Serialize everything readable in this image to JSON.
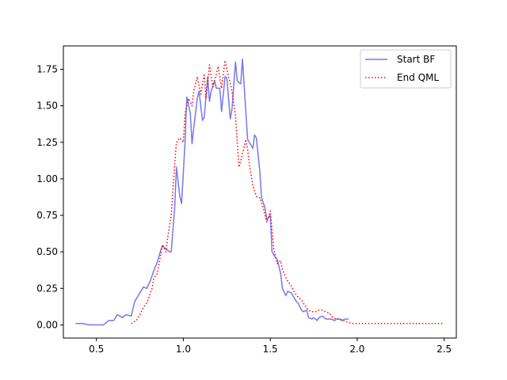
{
  "chart_data": {
    "type": "line",
    "title": "",
    "xlabel": "",
    "ylabel": "",
    "xlim": [
      0.31,
      2.57
    ],
    "ylim": [
      -0.09,
      1.91
    ],
    "xticks": [
      0.5,
      1.0,
      1.5,
      2.0,
      2.5
    ],
    "xtick_labels": [
      "0.5",
      "1.0",
      "1.5",
      "2.0",
      "2.5"
    ],
    "yticks": [
      0.0,
      0.25,
      0.5,
      0.75,
      1.0,
      1.25,
      1.5,
      1.75
    ],
    "ytick_labels": [
      "0.00",
      "0.25",
      "0.50",
      "0.75",
      "1.00",
      "1.25",
      "1.50",
      "1.75"
    ],
    "grid": false,
    "legend_position": "upper right",
    "series": [
      {
        "name": "Start BF",
        "color": "#7777ee",
        "style": "solid",
        "x": [
          0.38,
          0.42,
          0.46,
          0.5,
          0.54,
          0.57,
          0.6,
          0.62,
          0.65,
          0.67,
          0.7,
          0.72,
          0.74,
          0.77,
          0.79,
          0.81,
          0.83,
          0.85,
          0.87,
          0.88,
          0.9,
          0.92,
          0.93,
          0.95,
          0.96,
          0.98,
          0.99,
          1.01,
          1.02,
          1.04,
          1.05,
          1.06,
          1.08,
          1.09,
          1.11,
          1.12,
          1.14,
          1.15,
          1.16,
          1.18,
          1.19,
          1.21,
          1.22,
          1.24,
          1.25,
          1.27,
          1.28,
          1.3,
          1.31,
          1.33,
          1.34,
          1.36,
          1.37,
          1.38,
          1.4,
          1.41,
          1.42,
          1.44,
          1.45,
          1.47,
          1.48,
          1.5,
          1.51,
          1.53,
          1.54,
          1.56,
          1.57,
          1.59,
          1.6,
          1.62,
          1.63,
          1.65,
          1.66,
          1.68,
          1.69,
          1.71,
          1.72,
          1.74,
          1.75,
          1.77,
          1.78,
          1.8,
          1.82,
          1.83,
          1.85,
          1.87,
          1.88,
          1.9,
          1.91,
          1.93,
          1.95
        ],
        "y": [
          0.01,
          0.01,
          0.0,
          0.0,
          0.0,
          0.03,
          0.03,
          0.07,
          0.05,
          0.07,
          0.06,
          0.16,
          0.2,
          0.26,
          0.25,
          0.3,
          0.37,
          0.43,
          0.51,
          0.54,
          0.52,
          0.5,
          0.5,
          0.8,
          1.08,
          0.88,
          0.83,
          1.25,
          1.56,
          1.45,
          1.24,
          1.35,
          1.55,
          1.6,
          1.4,
          1.42,
          1.7,
          1.53,
          1.6,
          1.67,
          1.62,
          1.62,
          1.46,
          1.7,
          1.69,
          1.41,
          1.48,
          1.8,
          1.67,
          1.65,
          1.82,
          1.45,
          1.27,
          1.25,
          1.21,
          1.3,
          1.28,
          1.05,
          0.87,
          0.8,
          0.72,
          0.75,
          0.5,
          0.46,
          0.45,
          0.35,
          0.25,
          0.2,
          0.23,
          0.22,
          0.2,
          0.16,
          0.15,
          0.1,
          0.09,
          0.1,
          0.05,
          0.04,
          0.05,
          0.03,
          0.05,
          0.06,
          0.04,
          0.04,
          0.04,
          0.03,
          0.04,
          0.04,
          0.03,
          0.04,
          0.04
        ]
      },
      {
        "name": "End QML",
        "color": "#ff0000",
        "style": "dotted",
        "x": [
          0.7,
          0.73,
          0.75,
          0.77,
          0.79,
          0.8,
          0.82,
          0.83,
          0.85,
          0.87,
          0.88,
          0.9,
          0.91,
          0.93,
          0.95,
          0.96,
          0.98,
          1.0,
          1.01,
          1.03,
          1.05,
          1.06,
          1.08,
          1.1,
          1.12,
          1.13,
          1.15,
          1.17,
          1.19,
          1.2,
          1.22,
          1.24,
          1.26,
          1.28,
          1.3,
          1.32,
          1.34,
          1.36,
          1.37,
          1.38,
          1.4,
          1.42,
          1.44,
          1.46,
          1.48,
          1.5,
          1.52,
          1.54,
          1.56,
          1.57,
          1.58,
          1.6,
          1.62,
          1.64,
          1.66,
          1.68,
          1.7,
          1.72,
          1.74,
          1.76,
          1.78,
          1.8,
          1.82,
          1.84,
          1.86,
          1.88,
          1.9,
          1.92,
          1.94,
          1.97,
          2.0,
          2.05,
          2.1,
          2.2,
          2.3,
          2.4,
          2.5
        ],
        "y": [
          0.01,
          0.03,
          0.07,
          0.12,
          0.15,
          0.18,
          0.25,
          0.32,
          0.35,
          0.48,
          0.55,
          0.5,
          0.6,
          0.75,
          1.1,
          1.25,
          1.28,
          1.25,
          1.45,
          1.55,
          1.5,
          1.6,
          1.7,
          1.58,
          1.72,
          1.55,
          1.78,
          1.63,
          1.72,
          1.77,
          1.62,
          1.81,
          1.7,
          1.6,
          1.43,
          1.08,
          1.17,
          1.27,
          1.2,
          1.1,
          0.95,
          0.88,
          0.87,
          0.8,
          0.7,
          0.78,
          0.52,
          0.42,
          0.44,
          0.38,
          0.35,
          0.3,
          0.27,
          0.22,
          0.19,
          0.17,
          0.13,
          0.1,
          0.09,
          0.09,
          0.1,
          0.1,
          0.09,
          0.08,
          0.05,
          0.04,
          0.04,
          0.03,
          0.02,
          0.01,
          0.01,
          0.01,
          0.01,
          0.01,
          0.01,
          0.01,
          0.01
        ]
      }
    ]
  }
}
